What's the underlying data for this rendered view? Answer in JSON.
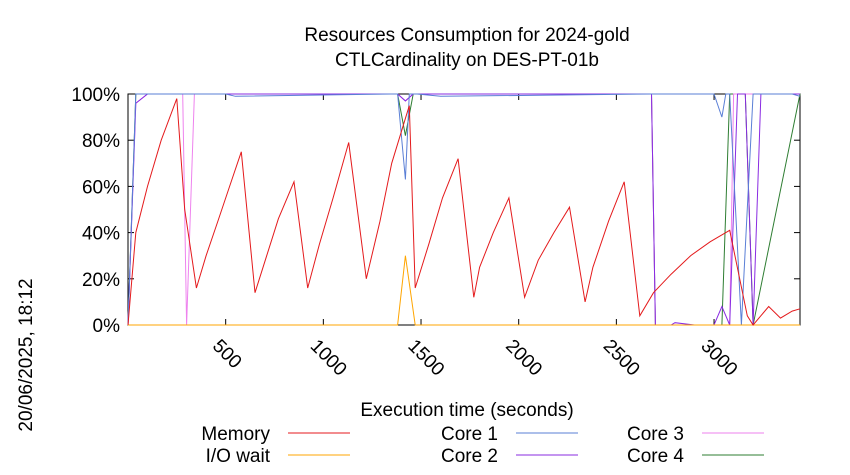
{
  "chart_data": {
    "type": "line",
    "title": "Resources Consumption for 2024-gold",
    "subtitle": "CTLCardinality on DES-PT-01b",
    "xlabel": "Execution time (seconds)",
    "ylabel": "",
    "xlim": [
      0,
      3440
    ],
    "ylim": [
      0,
      100
    ],
    "xticks": [
      500,
      1000,
      1500,
      2000,
      2500,
      3000
    ],
    "yticks": [
      0,
      20,
      40,
      60,
      80,
      100
    ],
    "ytick_labels": [
      "0%",
      "20%",
      "40%",
      "60%",
      "80%",
      "100%"
    ],
    "grid": false,
    "legend_position": "bottom",
    "timestamp": "20/06/2025, 18:12",
    "series": [
      {
        "name": "Memory",
        "color": "#e41a1c",
        "x": [
          0,
          40,
          100,
          170,
          250,
          290,
          350,
          400,
          460,
          520,
          580,
          650,
          710,
          770,
          850,
          920,
          980,
          1050,
          1130,
          1220,
          1290,
          1350,
          1440,
          1470,
          1540,
          1610,
          1690,
          1770,
          1800,
          1870,
          1950,
          2030,
          2100,
          2180,
          2260,
          2340,
          2380,
          2460,
          2540,
          2620,
          2690,
          2780,
          2880,
          2980,
          3080,
          3170,
          3200,
          3280,
          3340,
          3400,
          3440
        ],
        "y": [
          0,
          40,
          60,
          80,
          98,
          50,
          16,
          30,
          45,
          60,
          75,
          14,
          30,
          46,
          62,
          16,
          35,
          55,
          79,
          20,
          45,
          70,
          95,
          16,
          35,
          55,
          72,
          12,
          25,
          40,
          55,
          12,
          28,
          40,
          51,
          10,
          25,
          45,
          62,
          4,
          14,
          22,
          30,
          36,
          41,
          4,
          0,
          8,
          3,
          6,
          7
        ]
      },
      {
        "name": "I/O wait",
        "color": "#ffa500",
        "x": [
          0,
          1380,
          1420,
          1470,
          3440
        ],
        "y": [
          0,
          0,
          30,
          0,
          0
        ]
      },
      {
        "name": "Core 1",
        "color": "#5a7fd6",
        "x": [
          0,
          40,
          100,
          200,
          500,
          550,
          1350,
          1380,
          1420,
          1440,
          1480,
          1600,
          2680,
          3000,
          3040,
          3060,
          3080,
          3140,
          3200,
          3400,
          3440
        ],
        "y": [
          0,
          100,
          100,
          100,
          100,
          99,
          100,
          100,
          63,
          100,
          100,
          99,
          100,
          100,
          90,
          100,
          100,
          0,
          100,
          100,
          99
        ]
      },
      {
        "name": "Core 2",
        "color": "#8a2be2",
        "x": [
          0,
          40,
          100,
          1380,
          1420,
          1460,
          2680,
          2700,
          2780,
          2800,
          2900,
          3000,
          3040,
          3080,
          3120,
          3160,
          3200,
          3240,
          3440
        ],
        "y": [
          0,
          96,
          100,
          100,
          97,
          100,
          100,
          0,
          0,
          1,
          0,
          0,
          8,
          0,
          100,
          100,
          0,
          100,
          100
        ]
      },
      {
        "name": "Core 3",
        "color": "#ee82ee",
        "x": [
          0,
          40,
          100,
          280,
          300,
          340,
          360,
          1380,
          1420,
          1460,
          2680,
          2700,
          3080,
          3100,
          3180,
          3440
        ],
        "y": [
          0,
          96,
          100,
          100,
          0,
          100,
          100,
          100,
          97,
          100,
          100,
          0,
          0,
          100,
          100,
          100
        ],
        "note_hidden": ""
      },
      {
        "name": "Core 4",
        "color": "#2e7d32",
        "x": [
          0,
          40,
          100,
          1380,
          1420,
          1460,
          2680,
          2700,
          3040,
          3080,
          3120,
          3160,
          3200,
          3440
        ],
        "y": [
          0,
          100,
          100,
          100,
          82,
          100,
          100,
          0,
          0,
          100,
          100,
          100,
          0,
          100
        ]
      }
    ]
  }
}
